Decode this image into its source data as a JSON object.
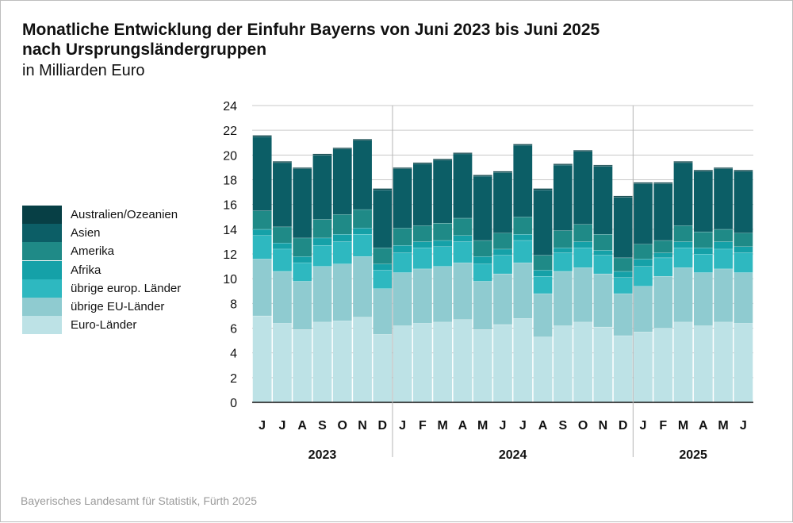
{
  "title_line1": "Monatliche Entwicklung der Einfuhr Bayerns von Juni 2023 bis Juni 2025",
  "title_line2": "nach Ursprungsländergruppen",
  "subtitle": "in Milliarden Euro",
  "source": "Bayerisches Landesamt für Statistik, Fürth 2025",
  "chart_data": {
    "type": "bar",
    "stacked": true,
    "title": "Monatliche Entwicklung der Einfuhr Bayerns von Juni 2023 bis Juni 2025 nach Ursprungsländergruppen",
    "subtitle": "in Milliarden Euro",
    "ylim": [
      0,
      24
    ],
    "yticks": [
      0,
      2,
      4,
      6,
      8,
      10,
      12,
      14,
      16,
      18,
      20,
      22,
      24
    ],
    "grid": true,
    "legend_position": "left",
    "categories": [
      "J",
      "J",
      "A",
      "S",
      "O",
      "N",
      "D",
      "J",
      "F",
      "M",
      "A",
      "M",
      "J",
      "J",
      "A",
      "S",
      "O",
      "N",
      "D",
      "J",
      "F",
      "M",
      "A",
      "M",
      "J"
    ],
    "years": [
      {
        "label": "2023",
        "start": 0,
        "end": 6
      },
      {
        "label": "2024",
        "start": 7,
        "end": 18
      },
      {
        "label": "2025",
        "start": 19,
        "end": 24
      }
    ],
    "series": [
      {
        "name": "Euro-Länder",
        "color": "#bde2e6",
        "values": [
          7.0,
          6.4,
          5.9,
          6.5,
          6.6,
          6.9,
          5.5,
          6.2,
          6.4,
          6.5,
          6.7,
          5.9,
          6.3,
          6.8,
          5.3,
          6.2,
          6.5,
          6.1,
          5.4,
          5.7,
          6.0,
          6.5,
          6.2,
          6.5,
          6.4
        ]
      },
      {
        "name": "übrige EU-Länder",
        "color": "#8fcbd0",
        "values": [
          4.6,
          4.2,
          3.9,
          4.5,
          4.6,
          4.9,
          3.7,
          4.3,
          4.4,
          4.5,
          4.6,
          3.9,
          4.1,
          4.5,
          3.5,
          4.4,
          4.4,
          4.3,
          3.4,
          3.7,
          4.2,
          4.4,
          4.3,
          4.3,
          4.1
        ]
      },
      {
        "name": "übrige europ. Länder",
        "color": "#2eb8c0",
        "values": [
          1.9,
          1.8,
          1.5,
          1.7,
          1.8,
          1.8,
          1.5,
          1.6,
          1.7,
          1.6,
          1.7,
          1.4,
          1.5,
          1.8,
          1.4,
          1.5,
          1.6,
          1.5,
          1.3,
          1.6,
          1.5,
          1.6,
          1.5,
          1.6,
          1.6
        ]
      },
      {
        "name": "Afrika",
        "color": "#15a1a8",
        "values": [
          0.5,
          0.5,
          0.5,
          0.6,
          0.6,
          0.5,
          0.5,
          0.6,
          0.5,
          0.5,
          0.5,
          0.6,
          0.5,
          0.5,
          0.5,
          0.4,
          0.5,
          0.4,
          0.5,
          0.6,
          0.4,
          0.5,
          0.5,
          0.6,
          0.5
        ]
      },
      {
        "name": "Amerika",
        "color": "#1f8a87",
        "values": [
          1.5,
          1.3,
          1.5,
          1.5,
          1.6,
          1.5,
          1.3,
          1.4,
          1.3,
          1.4,
          1.4,
          1.3,
          1.3,
          1.4,
          1.2,
          1.4,
          1.4,
          1.3,
          1.1,
          1.2,
          1.0,
          1.3,
          1.3,
          1.0,
          1.1
        ]
      },
      {
        "name": "Asien",
        "color": "#0c5e66",
        "values": [
          6.0,
          5.2,
          5.6,
          5.2,
          5.3,
          5.6,
          4.7,
          4.8,
          5.0,
          5.1,
          5.2,
          5.2,
          4.9,
          5.8,
          5.3,
          5.3,
          5.9,
          5.5,
          4.9,
          4.9,
          4.6,
          5.1,
          4.9,
          4.9,
          5.0
        ]
      },
      {
        "name": "Australien/Ozeanien",
        "color": "#073f45",
        "values": [
          0.1,
          0.1,
          0.1,
          0.1,
          0.1,
          0.1,
          0.1,
          0.1,
          0.1,
          0.1,
          0.1,
          0.1,
          0.1,
          0.1,
          0.1,
          0.1,
          0.1,
          0.1,
          0.1,
          0.1,
          0.1,
          0.1,
          0.1,
          0.1,
          0.1
        ]
      }
    ]
  }
}
